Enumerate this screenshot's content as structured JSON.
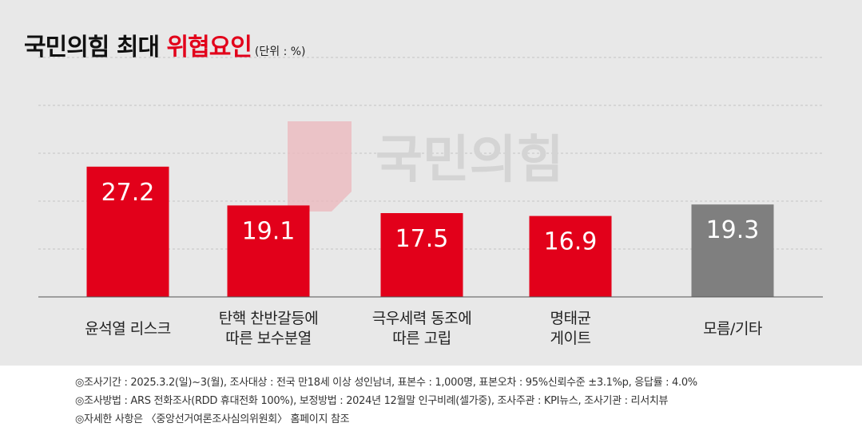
{
  "title": {
    "main": "국민의힘 최대 ",
    "highlight": "위협요인",
    "unit": "(단위 : %)"
  },
  "watermark": {
    "text": "국민의힘"
  },
  "colors": {
    "accent": "#e2001a",
    "other": "#7f7f7f",
    "watermark_text": "#d4d4d4",
    "watermark_logo": "#ebb9be"
  },
  "chart_data": {
    "type": "bar",
    "categories": [
      "윤석열 리스크",
      "탄핵 찬반갈등에\n따른 보수분열",
      "극우세력 동조에\n따른 고립",
      "명태균\n게이트",
      "모름/기타"
    ],
    "values": [
      27.2,
      19.1,
      17.5,
      16.9,
      19.3
    ],
    "bar_colors": [
      "#e2001a",
      "#e2001a",
      "#e2001a",
      "#e2001a",
      "#7f7f7f"
    ],
    "ylim": [
      0,
      50
    ],
    "grid": true
  },
  "footer": {
    "notes": [
      "◎조사기간 : 2025.3.2(일)~3(월), 조사대상 : 전국 만18세 이상 성인남녀, 표본수 : 1,000명, 표본오차 : 95%신뢰수준 ±3.1%p, 응답률 : 4.0%",
      "◎조사방법 : ARS 전화조사(RDD 휴대전화 100%), 보정방법 : 2024년 12월말 인구비례(셀가중), 조사주관 : KPI뉴스, 조사기관 : 리서치뷰",
      "◎자세한 사항은 〈중앙선거여론조사심의위원회〉 홈페이지 참조"
    ]
  }
}
